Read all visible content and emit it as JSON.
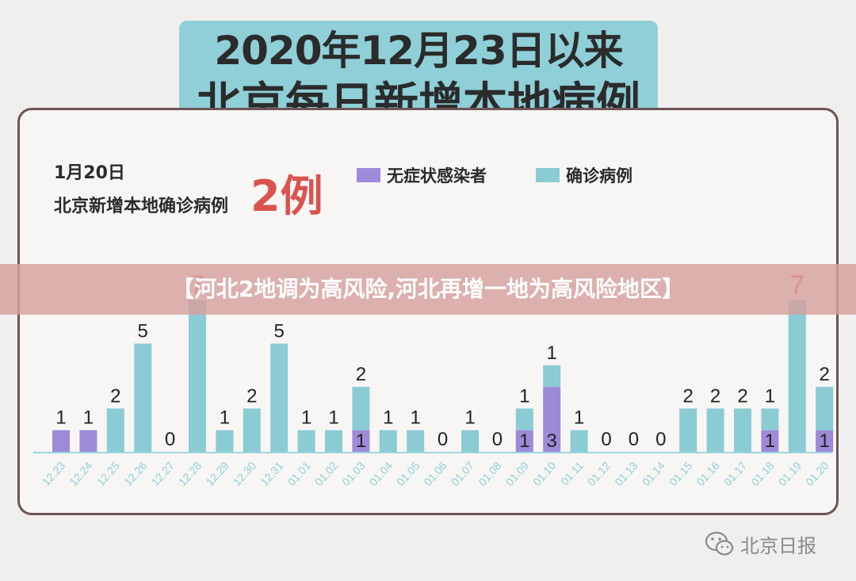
{
  "header": {
    "title_line1": "2020年12月23日以来",
    "title_line2": "北京每日新增本地病例数"
  },
  "summary": {
    "date": "1月20日",
    "label": "北京新增本地确诊病例",
    "count": "2例"
  },
  "legend": {
    "asymptomatic": "无症状感染者",
    "confirmed": "确诊病例"
  },
  "banner": "【河北2地调为高风险,河北再增一地为高风险地区】",
  "watermark": {
    "source": "北京日报",
    "icon": "wechat-icon"
  },
  "colors": {
    "asymptomatic": "#9d8ad9",
    "confirmed": "#8bcbd4",
    "axis_label": "#8fcfd8",
    "highlight_value": "#e06a66"
  },
  "chart_data": {
    "type": "bar",
    "stacked": true,
    "categories": [
      "12.23",
      "12.24",
      "12.25",
      "12.26",
      "12.27",
      "12.28",
      "12.29",
      "12.30",
      "12.31",
      "01.01",
      "01.02",
      "01.03",
      "01.04",
      "01.05",
      "01.06",
      "01.07",
      "01.08",
      "01.09",
      "01.10",
      "01.11",
      "01.12",
      "01.13",
      "01.14",
      "01.15",
      "01.16",
      "01.17",
      "01.18",
      "01.19",
      "01.20"
    ],
    "series": [
      {
        "name": "无症状感染者",
        "values": [
          1,
          1,
          0,
          0,
          0,
          0,
          0,
          0,
          0,
          0,
          0,
          1,
          0,
          0,
          0,
          0,
          0,
          1,
          3,
          0,
          0,
          0,
          0,
          0,
          0,
          0,
          1,
          0,
          1
        ]
      },
      {
        "name": "确诊病例",
        "values": [
          0,
          0,
          2,
          5,
          0,
          7,
          1,
          2,
          5,
          1,
          1,
          2,
          1,
          1,
          0,
          1,
          0,
          1,
          1,
          1,
          0,
          0,
          0,
          2,
          2,
          2,
          1,
          7,
          2
        ]
      }
    ],
    "ylim": [
      0,
      8
    ],
    "grid": false,
    "legend_position": "top-right"
  }
}
